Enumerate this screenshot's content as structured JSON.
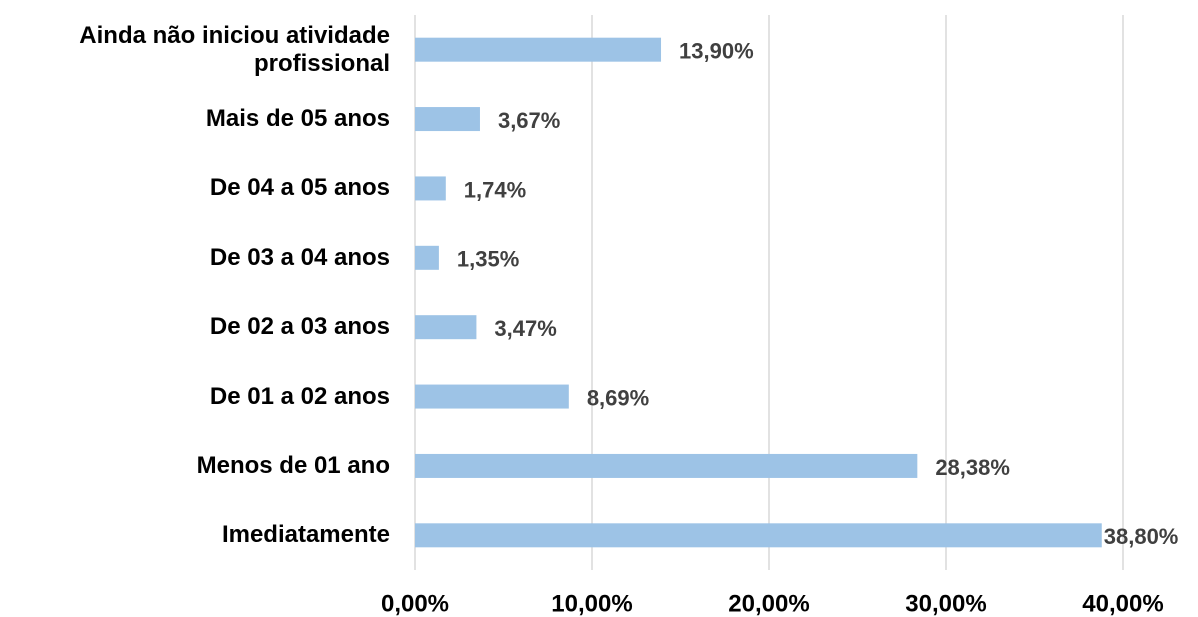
{
  "chart_data": {
    "type": "bar",
    "orientation": "horizontal",
    "categories": [
      "Ainda não iniciou atividade profissional",
      "Mais de 05 anos",
      "De 04 a 05 anos",
      "De 03 a 04 anos",
      "De 02 a 03 anos",
      "De 01 a 02 anos",
      "Menos de 01 ano",
      "Imediatamente"
    ],
    "values": [
      13.9,
      3.67,
      1.74,
      1.35,
      3.47,
      8.69,
      28.38,
      38.8
    ],
    "value_labels": [
      "13,90%",
      "3,67%",
      "1,74%",
      "1,35%",
      "3,47%",
      "8,69%",
      "28,38%",
      "38,80%"
    ],
    "color": "#9dc3e6",
    "xlim": [
      0,
      40
    ],
    "xticks": [
      {
        "value": 0,
        "label": "0,00%"
      },
      {
        "value": 10,
        "label": "10,00%"
      },
      {
        "value": 20,
        "label": "20,00%"
      },
      {
        "value": 30,
        "label": "30,00%"
      },
      {
        "value": 40,
        "label": "40,00%"
      }
    ],
    "grid": true
  }
}
